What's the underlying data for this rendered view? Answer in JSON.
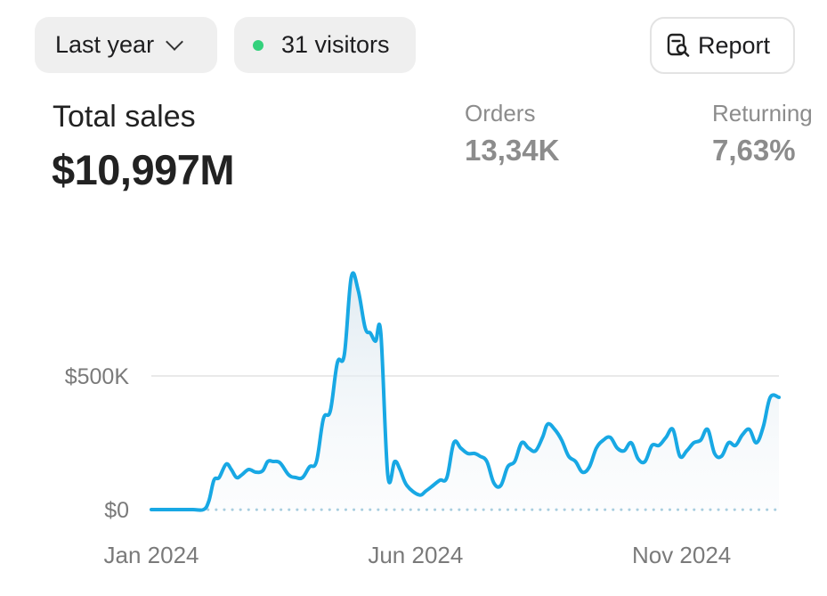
{
  "filters": {
    "range_label": "Last year",
    "visitors_label": "31 visitors",
    "visitors_dot_color": "#34d17c"
  },
  "actions": {
    "report_label": "Report"
  },
  "stats": {
    "total_label": "Total sales",
    "total_value": "$10,997M",
    "orders_label": "Orders",
    "orders_value": "13,34K",
    "returning_label": "Returning",
    "returning_value": "7,63%"
  },
  "colors": {
    "line": "#18a8e4",
    "grid": "#e2e2e2",
    "zero_dots": "#9cc7db"
  },
  "chart_data": {
    "type": "area",
    "y_ticks": [
      {
        "value": 0,
        "label": "$0"
      },
      {
        "value": 500000,
        "label": "$500K"
      }
    ],
    "x_ticks": [
      {
        "date": "2024-01-01",
        "label": "Jan 2024"
      },
      {
        "date": "2024-06-01",
        "label": "Jun 2024"
      },
      {
        "date": "2024-11-01",
        "label": "Nov 2024"
      }
    ],
    "ylim": [
      0,
      880000
    ],
    "grid": true,
    "x": [
      "2024-01-01",
      "2024-01-09",
      "2024-01-17",
      "2024-01-25",
      "2024-01-31",
      "2024-02-03",
      "2024-02-06",
      "2024-02-09",
      "2024-02-13",
      "2024-02-16",
      "2024-02-19",
      "2024-02-22",
      "2024-02-26",
      "2024-03-01",
      "2024-03-05",
      "2024-03-08",
      "2024-03-11",
      "2024-03-15",
      "2024-03-20",
      "2024-03-24",
      "2024-03-28",
      "2024-04-01",
      "2024-04-05",
      "2024-04-09",
      "2024-04-13",
      "2024-04-17",
      "2024-04-21",
      "2024-04-25",
      "2024-04-29",
      "2024-05-03",
      "2024-05-06",
      "2024-05-09",
      "2024-05-12",
      "2024-05-16",
      "2024-05-20",
      "2024-05-23",
      "2024-05-27",
      "2024-06-03",
      "2024-06-07",
      "2024-06-11",
      "2024-06-15",
      "2024-06-19",
      "2024-06-23",
      "2024-06-27",
      "2024-07-01",
      "2024-07-05",
      "2024-07-08",
      "2024-07-12",
      "2024-07-16",
      "2024-07-20",
      "2024-07-24",
      "2024-07-28",
      "2024-08-01",
      "2024-08-05",
      "2024-08-09",
      "2024-08-13",
      "2024-08-16",
      "2024-08-20",
      "2024-08-24",
      "2024-08-28",
      "2024-09-01",
      "2024-09-05",
      "2024-09-09",
      "2024-09-13",
      "2024-09-17",
      "2024-09-21",
      "2024-09-25",
      "2024-09-29",
      "2024-10-03",
      "2024-10-07",
      "2024-10-11",
      "2024-10-15",
      "2024-10-19",
      "2024-10-23",
      "2024-10-27",
      "2024-10-31",
      "2024-11-04",
      "2024-11-08",
      "2024-11-12",
      "2024-11-16",
      "2024-11-20",
      "2024-11-24",
      "2024-11-28",
      "2024-12-02",
      "2024-12-06",
      "2024-12-10",
      "2024-12-14",
      "2024-12-18",
      "2024-12-22",
      "2024-12-27"
    ],
    "series": [
      {
        "values": [
          0,
          0,
          0,
          0,
          0,
          30000,
          110000,
          120000,
          170000,
          150000,
          120000,
          130000,
          150000,
          140000,
          145000,
          180000,
          180000,
          175000,
          130000,
          120000,
          120000,
          160000,
          180000,
          340000,
          370000,
          550000,
          580000,
          870000,
          820000,
          680000,
          660000,
          630000,
          660000,
          130000,
          180000,
          150000,
          90000,
          55000,
          70000,
          90000,
          110000,
          120000,
          250000,
          230000,
          210000,
          210000,
          200000,
          180000,
          100000,
          90000,
          160000,
          180000,
          250000,
          230000,
          220000,
          270000,
          320000,
          300000,
          260000,
          200000,
          180000,
          140000,
          160000,
          230000,
          260000,
          270000,
          230000,
          220000,
          250000,
          190000,
          180000,
          240000,
          240000,
          270000,
          300000,
          200000,
          220000,
          250000,
          260000,
          300000,
          210000,
          200000,
          250000,
          240000,
          280000,
          300000,
          250000,
          310000,
          420000,
          420000
        ]
      }
    ]
  }
}
